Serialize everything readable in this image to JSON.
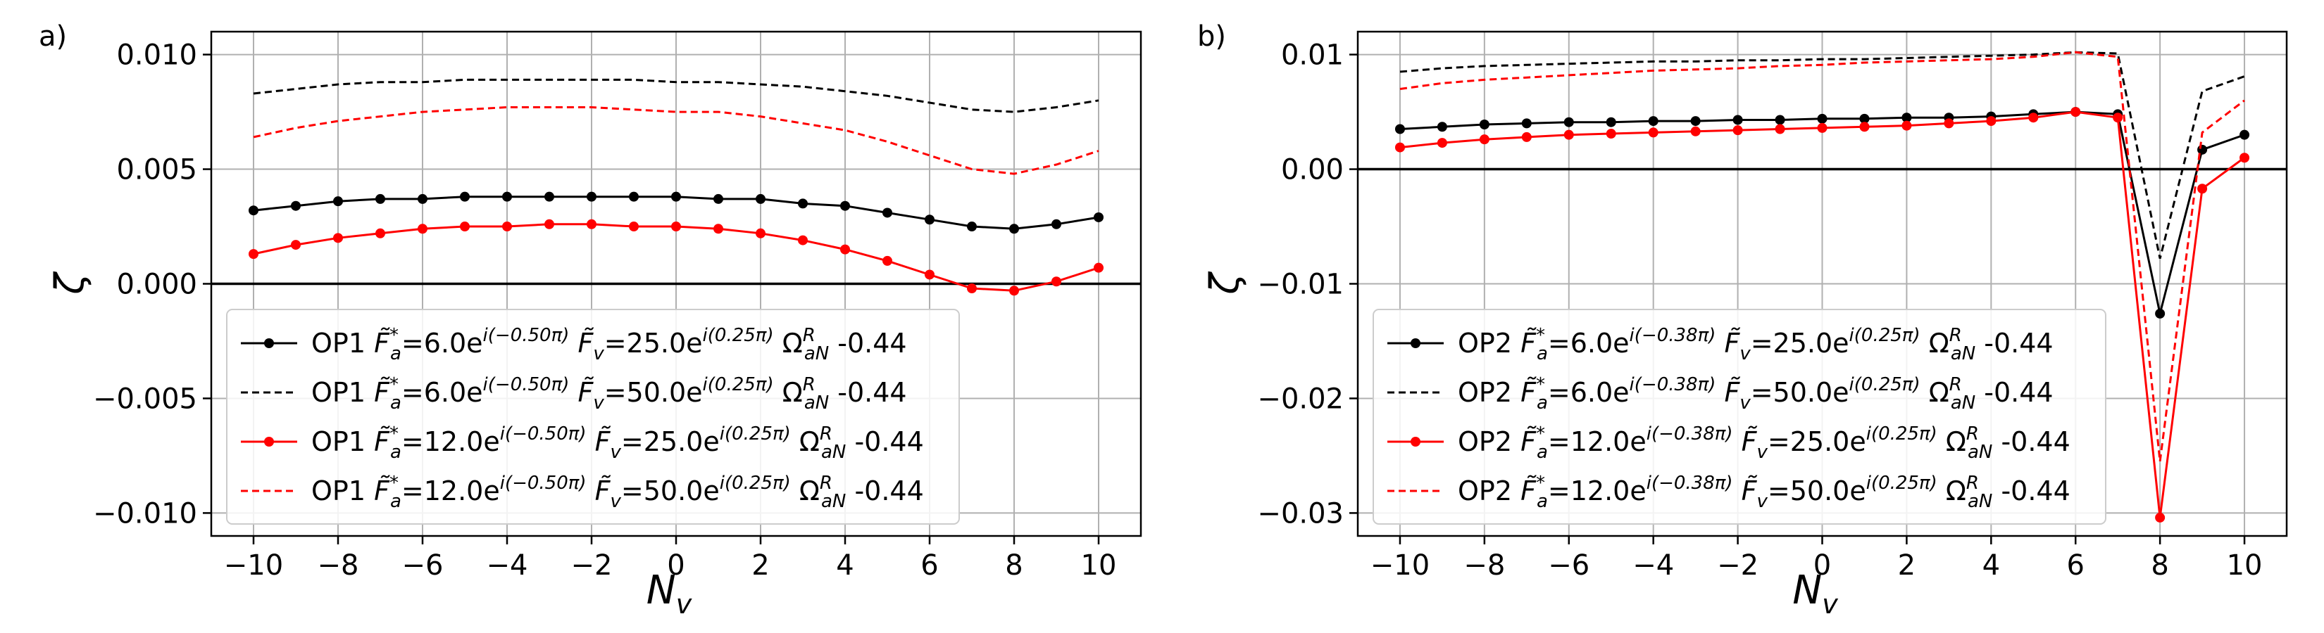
{
  "chart_data": [
    {
      "type": "line",
      "panel_label": "a)",
      "xlabel": "N",
      "xlabel_sub": "v",
      "ylabel": "ζ",
      "xlim": [
        -11,
        11
      ],
      "ylim": [
        -0.011,
        0.011
      ],
      "xticks": [
        -10,
        -8,
        -6,
        -4,
        -2,
        0,
        2,
        4,
        6,
        8,
        10
      ],
      "xtick_labels": [
        "−10",
        "−8",
        "−6",
        "−4",
        "−2",
        "0",
        "2",
        "4",
        "6",
        "8",
        "10"
      ],
      "yticks": [
        0.01,
        0.005,
        0,
        -0.005,
        -0.01
      ],
      "ytick_labels": [
        "0.010",
        "0.005",
        "0.000",
        "−0.005",
        "−0.010"
      ],
      "grid": true,
      "legend_position": "lower-left",
      "x": [
        -10,
        -9,
        -8,
        -7,
        -6,
        -5,
        -4,
        -3,
        -2,
        -1,
        0,
        1,
        2,
        3,
        4,
        5,
        6,
        7,
        8,
        9,
        10
      ],
      "series": [
        {
          "name_prefix": "OP1",
          "fa": "6.0",
          "fa_phase": "(−0.50π)",
          "fv": "25.0",
          "fv_phase": "(0.25π)",
          "omega": "-0.44",
          "color": "#000000",
          "style": "solid-marker",
          "values": [
            0.0032,
            0.0034,
            0.0036,
            0.0037,
            0.0037,
            0.0038,
            0.0038,
            0.0038,
            0.0038,
            0.0038,
            0.0038,
            0.0037,
            0.0037,
            0.0035,
            0.0034,
            0.0031,
            0.0028,
            0.0025,
            0.0024,
            0.0026,
            0.0029
          ]
        },
        {
          "name_prefix": "OP1",
          "fa": "6.0",
          "fa_phase": "(−0.50π)",
          "fv": "50.0",
          "fv_phase": "(0.25π)",
          "omega": "-0.44",
          "color": "#000000",
          "style": "dashed",
          "values": [
            0.0083,
            0.0085,
            0.0087,
            0.0088,
            0.0088,
            0.0089,
            0.0089,
            0.0089,
            0.0089,
            0.0089,
            0.0088,
            0.0088,
            0.0087,
            0.0086,
            0.0084,
            0.0082,
            0.0079,
            0.0076,
            0.0075,
            0.0077,
            0.008
          ]
        },
        {
          "name_prefix": "OP1",
          "fa": "12.0",
          "fa_phase": "(−0.50π)",
          "fv": "25.0",
          "fv_phase": "(0.25π)",
          "omega": "-0.44",
          "color": "#ff0000",
          "style": "solid-marker",
          "values": [
            0.0013,
            0.0017,
            0.002,
            0.0022,
            0.0024,
            0.0025,
            0.0025,
            0.0026,
            0.0026,
            0.0025,
            0.0025,
            0.0024,
            0.0022,
            0.0019,
            0.0015,
            0.001,
            0.0004,
            -0.0002,
            -0.0003,
            0.0001,
            0.0007
          ]
        },
        {
          "name_prefix": "OP1",
          "fa": "12.0",
          "fa_phase": "(−0.50π)",
          "fv": "50.0",
          "fv_phase": "(0.25π)",
          "omega": "-0.44",
          "color": "#ff0000",
          "style": "dashed",
          "values": [
            0.0064,
            0.0068,
            0.0071,
            0.0073,
            0.0075,
            0.0076,
            0.0077,
            0.0077,
            0.0077,
            0.0076,
            0.0075,
            0.0075,
            0.0073,
            0.007,
            0.0067,
            0.0062,
            0.0056,
            0.005,
            0.0048,
            0.0052,
            0.0058
          ]
        }
      ]
    },
    {
      "type": "line",
      "panel_label": "b)",
      "xlabel": "N",
      "xlabel_sub": "v",
      "ylabel": "ζ",
      "xlim": [
        -11,
        11
      ],
      "ylim": [
        -0.032,
        0.012
      ],
      "xticks": [
        -10,
        -8,
        -6,
        -4,
        -2,
        0,
        2,
        4,
        6,
        8,
        10
      ],
      "xtick_labels": [
        "−10",
        "−8",
        "−6",
        "−4",
        "−2",
        "0",
        "2",
        "4",
        "6",
        "8",
        "10"
      ],
      "yticks": [
        0.01,
        0,
        -0.01,
        -0.02,
        -0.03
      ],
      "ytick_labels": [
        "0.01",
        "0.00",
        "−0.01",
        "−0.02",
        "−0.03"
      ],
      "grid": true,
      "legend_position": "lower-left",
      "x": [
        -10,
        -9,
        -8,
        -7,
        -6,
        -5,
        -4,
        -3,
        -2,
        -1,
        0,
        1,
        2,
        3,
        4,
        5,
        6,
        7,
        8,
        9,
        10
      ],
      "series": [
        {
          "name_prefix": "OP2",
          "fa": "6.0",
          "fa_phase": "(−0.38π)",
          "fv": "25.0",
          "fv_phase": "(0.25π)",
          "omega": "-0.44",
          "color": "#000000",
          "style": "solid-marker",
          "values": [
            0.0035,
            0.0037,
            0.0039,
            0.004,
            0.0041,
            0.0041,
            0.0042,
            0.0042,
            0.0043,
            0.0043,
            0.0044,
            0.0044,
            0.0045,
            0.0045,
            0.0046,
            0.0048,
            0.005,
            0.0048,
            -0.0126,
            0.0017,
            0.003
          ]
        },
        {
          "name_prefix": "OP2",
          "fa": "6.0",
          "fa_phase": "(−0.38π)",
          "fv": "50.0",
          "fv_phase": "(0.25π)",
          "omega": "-0.44",
          "color": "#000000",
          "style": "dashed",
          "values": [
            0.0085,
            0.0088,
            0.009,
            0.0091,
            0.0092,
            0.0093,
            0.0094,
            0.0094,
            0.0095,
            0.0095,
            0.0096,
            0.0096,
            0.0097,
            0.0098,
            0.0099,
            0.01,
            0.0102,
            0.0101,
            -0.0078,
            0.0068,
            0.0081
          ]
        },
        {
          "name_prefix": "OP2",
          "fa": "12.0",
          "fa_phase": "(−0.38π)",
          "fv": "25.0",
          "fv_phase": "(0.25π)",
          "omega": "-0.44",
          "color": "#ff0000",
          "style": "solid-marker",
          "values": [
            0.0019,
            0.0023,
            0.0026,
            0.0028,
            0.003,
            0.0031,
            0.0032,
            0.0033,
            0.0034,
            0.0035,
            0.0036,
            0.0037,
            0.0038,
            0.004,
            0.0042,
            0.0045,
            0.005,
            0.0045,
            -0.0304,
            -0.0017,
            0.001
          ]
        },
        {
          "name_prefix": "OP2",
          "fa": "12.0",
          "fa_phase": "(−0.38π)",
          "fv": "50.0",
          "fv_phase": "(0.25π)",
          "omega": "-0.44",
          "color": "#ff0000",
          "style": "dashed",
          "values": [
            0.007,
            0.0075,
            0.0078,
            0.008,
            0.0082,
            0.0084,
            0.0086,
            0.0087,
            0.0088,
            0.009,
            0.0091,
            0.0093,
            0.0094,
            0.0095,
            0.0096,
            0.0098,
            0.0102,
            0.0098,
            -0.0255,
            0.0032,
            0.006
          ]
        }
      ]
    }
  ]
}
